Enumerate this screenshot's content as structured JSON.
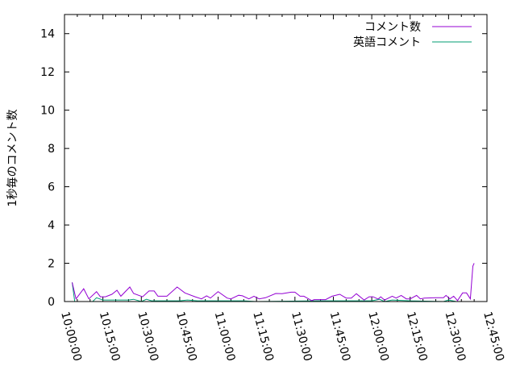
{
  "chart_data": {
    "type": "line",
    "title": "",
    "xlabel": "",
    "ylabel": "1秒毎のコメント数",
    "xlim": [
      "10:00:00",
      "12:45:00"
    ],
    "ylim": [
      0,
      15
    ],
    "x_ticks": [
      "10:00:00",
      "10:15:00",
      "10:30:00",
      "10:45:00",
      "11:00:00",
      "11:15:00",
      "11:30:00",
      "11:45:00",
      "12:00:00",
      "12:15:00",
      "12:30:00",
      "12:45:00"
    ],
    "y_ticks": [
      0,
      2,
      4,
      6,
      8,
      10,
      12,
      14
    ],
    "grid": false,
    "legend_position": "top-right",
    "series": [
      {
        "name": "コメント数",
        "color": "#9400d3",
        "points": [
          [
            "10:03:00",
            1.0
          ],
          [
            "10:04:30",
            0.14
          ],
          [
            "10:07:30",
            0.67
          ],
          [
            "10:09:30",
            0.14
          ],
          [
            "10:12:30",
            0.52
          ],
          [
            "10:14:00",
            0.25
          ],
          [
            "10:16:00",
            0.25
          ],
          [
            "10:18:30",
            0.38
          ],
          [
            "10:20:30",
            0.59
          ],
          [
            "10:22:00",
            0.28
          ],
          [
            "10:25:30",
            0.76
          ],
          [
            "10:27:00",
            0.42
          ],
          [
            "10:30:30",
            0.25
          ],
          [
            "10:33:00",
            0.55
          ],
          [
            "10:35:00",
            0.55
          ],
          [
            "10:36:30",
            0.28
          ],
          [
            "10:40:00",
            0.28
          ],
          [
            "10:44:00",
            0.76
          ],
          [
            "10:47:00",
            0.45
          ],
          [
            "10:51:00",
            0.25
          ],
          [
            "10:53:30",
            0.14
          ],
          [
            "10:55:30",
            0.3
          ],
          [
            "10:57:00",
            0.18
          ],
          [
            "11:00:00",
            0.52
          ],
          [
            "11:03:30",
            0.18
          ],
          [
            "11:05:00",
            0.14
          ],
          [
            "11:08:00",
            0.33
          ],
          [
            "11:09:30",
            0.3
          ],
          [
            "11:12:00",
            0.14
          ],
          [
            "11:14:00",
            0.28
          ],
          [
            "11:16:00",
            0.14
          ],
          [
            "11:18:30",
            0.2
          ],
          [
            "11:22:30",
            0.42
          ],
          [
            "11:25:00",
            0.41
          ],
          [
            "11:28:30",
            0.49
          ],
          [
            "11:30:00",
            0.49
          ],
          [
            "11:32:00",
            0.28
          ],
          [
            "11:33:30",
            0.28
          ],
          [
            "11:36:30",
            0.05
          ],
          [
            "11:37:30",
            0.1
          ],
          [
            "11:42:00",
            0.1
          ],
          [
            "11:44:30",
            0.28
          ],
          [
            "11:47:30",
            0.38
          ],
          [
            "11:50:00",
            0.18
          ],
          [
            "11:52:00",
            0.18
          ],
          [
            "11:54:00",
            0.41
          ],
          [
            "11:57:00",
            0.08
          ],
          [
            "11:59:00",
            0.25
          ],
          [
            "12:00:30",
            0.25
          ],
          [
            "12:02:30",
            0.13
          ],
          [
            "12:03:30",
            0.25
          ],
          [
            "12:05:00",
            0.08
          ],
          [
            "12:08:00",
            0.28
          ],
          [
            "12:09:30",
            0.18
          ],
          [
            "12:11:30",
            0.32
          ],
          [
            "12:13:30",
            0.14
          ],
          [
            "12:15:00",
            0.14
          ],
          [
            "12:17:30",
            0.32
          ],
          [
            "12:19:00",
            0.14
          ],
          [
            "12:20:30",
            0.18
          ],
          [
            "12:25:00",
            0.2
          ],
          [
            "12:28:00",
            0.2
          ],
          [
            "12:29:00",
            0.32
          ],
          [
            "12:30:30",
            0.14
          ],
          [
            "12:32:00",
            0.28
          ],
          [
            "12:33:30",
            0.05
          ],
          [
            "12:35:30",
            0.45
          ],
          [
            "12:37:00",
            0.45
          ],
          [
            "12:38:30",
            0.14
          ],
          [
            "12:39:30",
            1.85
          ],
          [
            "12:40:00",
            2.0
          ]
        ]
      },
      {
        "name": "英語コメント",
        "color": "#009e73",
        "points": [
          [
            "10:03:00",
            1.0
          ],
          [
            "10:04:00",
            0
          ],
          [
            "10:11:00",
            0
          ],
          [
            "10:12:30",
            0.2
          ],
          [
            "10:15:00",
            0.08
          ],
          [
            "10:25:00",
            0.08
          ],
          [
            "10:27:00",
            0.12
          ],
          [
            "10:30:00",
            0
          ],
          [
            "10:32:00",
            0.12
          ],
          [
            "10:34:00",
            0.04
          ],
          [
            "10:45:00",
            0.04
          ],
          [
            "10:48:00",
            0.08
          ],
          [
            "10:52:00",
            0.04
          ],
          [
            "11:10:00",
            0.04
          ],
          [
            "11:15:00",
            0
          ],
          [
            "11:40:00",
            0.04
          ],
          [
            "12:00:00",
            0.04
          ],
          [
            "12:03:00",
            0.12
          ],
          [
            "12:05:00",
            0
          ],
          [
            "12:08:00",
            0.08
          ],
          [
            "12:15:00",
            0.04
          ],
          [
            "12:28:00",
            0
          ],
          [
            "12:30:00",
            0.08
          ],
          [
            "12:33:00",
            0
          ],
          [
            "12:40:00",
            0
          ]
        ]
      }
    ]
  }
}
